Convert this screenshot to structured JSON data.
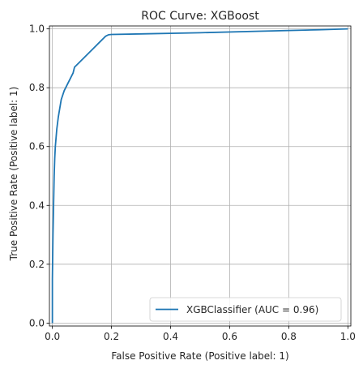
{
  "chart_data": {
    "type": "line",
    "title": "ROC Curve: XGBoost",
    "xlabel": "False Positive Rate (Positive label: 1)",
    "ylabel": "True Positive Rate (Positive label: 1)",
    "xlim": [
      -0.01,
      1.01
    ],
    "ylim": [
      -0.01,
      1.01
    ],
    "xticks": [
      0.0,
      0.2,
      0.4,
      0.6,
      0.8,
      1.0
    ],
    "yticks": [
      0.0,
      0.2,
      0.4,
      0.6,
      0.8,
      1.0
    ],
    "xtick_labels": [
      "0.0",
      "0.2",
      "0.4",
      "0.6",
      "0.8",
      "1.0"
    ],
    "ytick_labels": [
      "0.0",
      "0.2",
      "0.4",
      "0.6",
      "0.8",
      "1.0"
    ],
    "grid": true,
    "legend_position": "lower-right",
    "series": [
      {
        "name": "XGBClassifier (AUC = 0.96)",
        "color": "#1f77b4",
        "x": [
          0.0,
          0.0,
          0.002,
          0.004,
          0.006,
          0.008,
          0.01,
          0.015,
          0.02,
          0.025,
          0.03,
          0.04,
          0.05,
          0.06,
          0.07,
          0.075,
          0.08,
          0.1,
          0.12,
          0.14,
          0.16,
          0.18,
          0.19,
          0.2,
          0.3,
          0.5,
          0.7,
          0.9,
          1.0
        ],
        "y": [
          0.0,
          0.15,
          0.3,
          0.4,
          0.5,
          0.56,
          0.6,
          0.66,
          0.7,
          0.73,
          0.76,
          0.79,
          0.81,
          0.83,
          0.85,
          0.87,
          0.875,
          0.895,
          0.915,
          0.935,
          0.955,
          0.975,
          0.98,
          0.981,
          0.983,
          0.987,
          0.992,
          0.997,
          1.0
        ]
      }
    ]
  }
}
